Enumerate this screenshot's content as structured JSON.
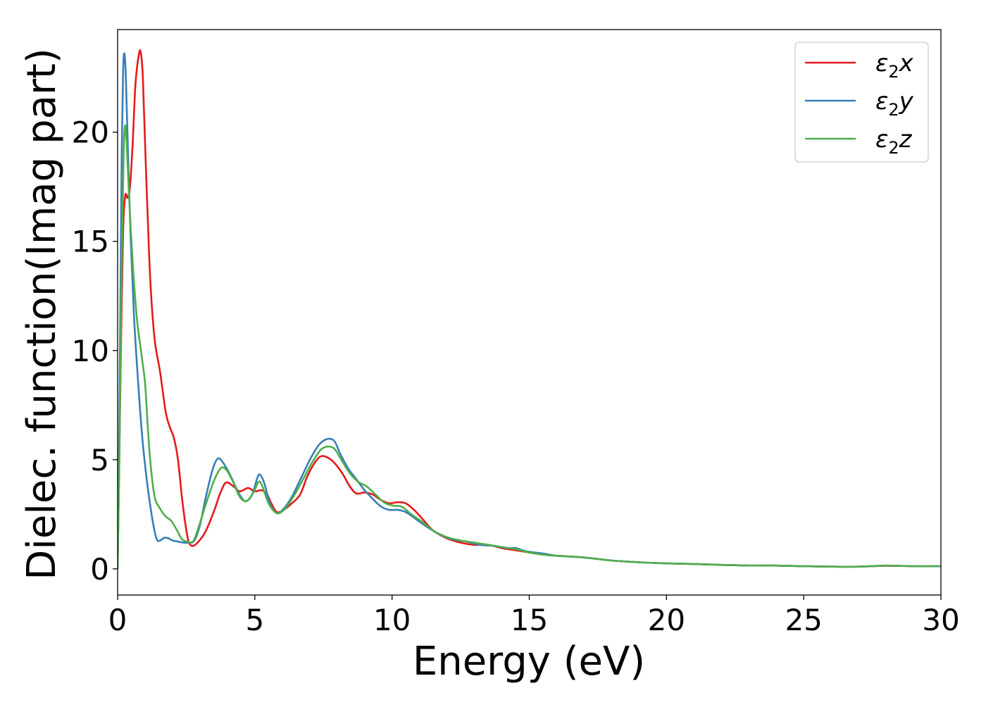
{
  "chart_data": {
    "type": "line",
    "title": "",
    "xlabel": "Energy (eV)",
    "ylabel": "Dielec. function(Imag part)",
    "xlim": [
      0,
      30
    ],
    "ylim": [
      -1.2,
      24.7
    ],
    "xticks": [
      0,
      5,
      10,
      15,
      20,
      25,
      30
    ],
    "xtick_labels": [
      "0",
      "5",
      "10",
      "15",
      "20",
      "25",
      "30"
    ],
    "yticks": [
      0,
      5,
      10,
      15,
      20
    ],
    "ytick_labels": [
      "0",
      "5",
      "10",
      "15",
      "20"
    ],
    "grid": false,
    "legend_position": "top-right",
    "series": [
      {
        "name": "ε2x",
        "legend": {
          "base": "ε",
          "sub": "2",
          "var": "x"
        },
        "color": "#e41a1c",
        "points": [
          [
            0,
            0
          ],
          [
            0.05,
            4
          ],
          [
            0.12,
            10
          ],
          [
            0.2,
            15.5
          ],
          [
            0.28,
            17.1
          ],
          [
            0.36,
            17.0
          ],
          [
            0.45,
            17.5
          ],
          [
            0.55,
            19.5
          ],
          [
            0.65,
            22.2
          ],
          [
            0.78,
            23.6
          ],
          [
            0.85,
            23.6
          ],
          [
            0.92,
            22.5
          ],
          [
            1.0,
            19.5
          ],
          [
            1.1,
            16.0
          ],
          [
            1.2,
            13.0
          ],
          [
            1.35,
            10.5
          ],
          [
            1.55,
            9.0
          ],
          [
            1.75,
            7.2
          ],
          [
            1.9,
            6.5
          ],
          [
            2.05,
            6.0
          ],
          [
            2.2,
            5.0
          ],
          [
            2.35,
            3.2
          ],
          [
            2.5,
            1.8
          ],
          [
            2.6,
            1.2
          ],
          [
            2.75,
            1.05
          ],
          [
            2.95,
            1.25
          ],
          [
            3.2,
            1.7
          ],
          [
            3.5,
            2.6
          ],
          [
            3.75,
            3.5
          ],
          [
            3.95,
            3.95
          ],
          [
            4.2,
            3.8
          ],
          [
            4.45,
            3.55
          ],
          [
            4.75,
            3.7
          ],
          [
            5.0,
            3.55
          ],
          [
            5.25,
            3.6
          ],
          [
            5.45,
            3.4
          ],
          [
            5.6,
            3.0
          ],
          [
            5.8,
            2.6
          ],
          [
            6.05,
            2.7
          ],
          [
            6.35,
            3.0
          ],
          [
            6.65,
            3.4
          ],
          [
            6.9,
            4.2
          ],
          [
            7.15,
            4.8
          ],
          [
            7.4,
            5.15
          ],
          [
            7.65,
            5.1
          ],
          [
            7.9,
            4.85
          ],
          [
            8.2,
            4.35
          ],
          [
            8.45,
            3.8
          ],
          [
            8.7,
            3.45
          ],
          [
            9.0,
            3.5
          ],
          [
            9.3,
            3.4
          ],
          [
            9.6,
            3.15
          ],
          [
            9.9,
            3.0
          ],
          [
            10.2,
            3.05
          ],
          [
            10.5,
            3.0
          ],
          [
            10.8,
            2.7
          ],
          [
            11.1,
            2.3
          ],
          [
            11.5,
            1.75
          ],
          [
            12.0,
            1.4
          ],
          [
            12.5,
            1.2
          ],
          [
            13.0,
            1.1
          ],
          [
            13.5,
            1.1
          ],
          [
            14.0,
            0.95
          ],
          [
            14.5,
            0.85
          ],
          [
            15.0,
            0.75
          ],
          [
            15.5,
            0.65
          ],
          [
            16.0,
            0.6
          ],
          [
            17.0,
            0.52
          ],
          [
            18.0,
            0.38
          ],
          [
            19.0,
            0.3
          ],
          [
            20.0,
            0.25
          ],
          [
            21.0,
            0.22
          ],
          [
            22.0,
            0.18
          ],
          [
            23.0,
            0.15
          ],
          [
            24.0,
            0.15
          ],
          [
            25.0,
            0.12
          ],
          [
            26.0,
            0.1
          ],
          [
            27.0,
            0.1
          ],
          [
            28.0,
            0.14
          ],
          [
            29.0,
            0.12
          ],
          [
            30.0,
            0.12
          ]
        ]
      },
      {
        "name": "ε2y",
        "legend": {
          "base": "ε",
          "sub": "2",
          "var": "y"
        },
        "color": "#377eb8",
        "points": [
          [
            0,
            0
          ],
          [
            0.05,
            5
          ],
          [
            0.1,
            12
          ],
          [
            0.15,
            19
          ],
          [
            0.2,
            22.8
          ],
          [
            0.25,
            23.6
          ],
          [
            0.3,
            22.5
          ],
          [
            0.38,
            19.0
          ],
          [
            0.48,
            15.0
          ],
          [
            0.6,
            11.5
          ],
          [
            0.75,
            8.5
          ],
          [
            0.9,
            6.0
          ],
          [
            1.05,
            4.2
          ],
          [
            1.2,
            2.8
          ],
          [
            1.35,
            1.7
          ],
          [
            1.45,
            1.3
          ],
          [
            1.55,
            1.3
          ],
          [
            1.7,
            1.42
          ],
          [
            1.85,
            1.4
          ],
          [
            2.0,
            1.3
          ],
          [
            2.2,
            1.25
          ],
          [
            2.4,
            1.2
          ],
          [
            2.6,
            1.2
          ],
          [
            2.8,
            1.3
          ],
          [
            3.0,
            2.0
          ],
          [
            3.2,
            3.2
          ],
          [
            3.45,
            4.5
          ],
          [
            3.65,
            5.05
          ],
          [
            3.85,
            4.85
          ],
          [
            4.1,
            4.3
          ],
          [
            4.4,
            3.5
          ],
          [
            4.65,
            3.1
          ],
          [
            4.9,
            3.4
          ],
          [
            5.1,
            4.2
          ],
          [
            5.2,
            4.3
          ],
          [
            5.35,
            3.9
          ],
          [
            5.55,
            3.0
          ],
          [
            5.8,
            2.55
          ],
          [
            6.05,
            2.75
          ],
          [
            6.35,
            3.3
          ],
          [
            6.7,
            4.2
          ],
          [
            7.05,
            5.1
          ],
          [
            7.35,
            5.7
          ],
          [
            7.65,
            5.95
          ],
          [
            7.9,
            5.85
          ],
          [
            8.1,
            5.3
          ],
          [
            8.4,
            4.6
          ],
          [
            8.7,
            4.1
          ],
          [
            9.0,
            3.6
          ],
          [
            9.3,
            3.2
          ],
          [
            9.6,
            2.85
          ],
          [
            9.9,
            2.7
          ],
          [
            10.2,
            2.7
          ],
          [
            10.5,
            2.6
          ],
          [
            10.9,
            2.25
          ],
          [
            11.3,
            1.9
          ],
          [
            11.7,
            1.6
          ],
          [
            12.2,
            1.35
          ],
          [
            12.7,
            1.25
          ],
          [
            13.2,
            1.1
          ],
          [
            13.7,
            1.05
          ],
          [
            14.2,
            0.95
          ],
          [
            14.5,
            0.95
          ],
          [
            14.9,
            0.8
          ],
          [
            15.5,
            0.7
          ],
          [
            16.0,
            0.6
          ],
          [
            17.0,
            0.52
          ],
          [
            18.0,
            0.38
          ],
          [
            19.0,
            0.3
          ],
          [
            20.0,
            0.25
          ],
          [
            21.0,
            0.22
          ],
          [
            22.0,
            0.18
          ],
          [
            23.0,
            0.15
          ],
          [
            24.0,
            0.15
          ],
          [
            25.0,
            0.12
          ],
          [
            26.0,
            0.1
          ],
          [
            27.0,
            0.1
          ],
          [
            28.0,
            0.15
          ],
          [
            29.0,
            0.12
          ],
          [
            30.0,
            0.12
          ]
        ]
      },
      {
        "name": "ε2z",
        "legend": {
          "base": "ε",
          "sub": "2",
          "var": "z"
        },
        "color": "#4daf4a",
        "points": [
          [
            0,
            0
          ],
          [
            0.05,
            4
          ],
          [
            0.1,
            9
          ],
          [
            0.15,
            14
          ],
          [
            0.22,
            19.0
          ],
          [
            0.27,
            20.3
          ],
          [
            0.33,
            19.5
          ],
          [
            0.42,
            17.0
          ],
          [
            0.55,
            14.0
          ],
          [
            0.7,
            11.5
          ],
          [
            0.85,
            10.0
          ],
          [
            1.0,
            8.5
          ],
          [
            1.1,
            6.5
          ],
          [
            1.2,
            4.8
          ],
          [
            1.35,
            3.3
          ],
          [
            1.55,
            2.75
          ],
          [
            1.75,
            2.4
          ],
          [
            1.95,
            2.2
          ],
          [
            2.15,
            1.8
          ],
          [
            2.35,
            1.35
          ],
          [
            2.55,
            1.25
          ],
          [
            2.75,
            1.25
          ],
          [
            2.95,
            1.9
          ],
          [
            3.2,
            2.9
          ],
          [
            3.5,
            4.0
          ],
          [
            3.75,
            4.6
          ],
          [
            3.95,
            4.55
          ],
          [
            4.2,
            4.0
          ],
          [
            4.45,
            3.3
          ],
          [
            4.7,
            3.1
          ],
          [
            4.95,
            3.5
          ],
          [
            5.15,
            4.0
          ],
          [
            5.3,
            3.7
          ],
          [
            5.5,
            3.0
          ],
          [
            5.8,
            2.55
          ],
          [
            6.1,
            2.75
          ],
          [
            6.45,
            3.4
          ],
          [
            6.8,
            4.2
          ],
          [
            7.1,
            4.9
          ],
          [
            7.4,
            5.45
          ],
          [
            7.65,
            5.6
          ],
          [
            7.9,
            5.5
          ],
          [
            8.15,
            5.0
          ],
          [
            8.45,
            4.4
          ],
          [
            8.75,
            4.0
          ],
          [
            9.1,
            3.75
          ],
          [
            9.4,
            3.4
          ],
          [
            9.7,
            3.05
          ],
          [
            10.0,
            2.9
          ],
          [
            10.35,
            2.85
          ],
          [
            10.7,
            2.5
          ],
          [
            11.1,
            2.15
          ],
          [
            11.5,
            1.75
          ],
          [
            12.0,
            1.45
          ],
          [
            12.5,
            1.3
          ],
          [
            13.0,
            1.2
          ],
          [
            13.5,
            1.1
          ],
          [
            14.0,
            1.0
          ],
          [
            14.5,
            0.9
          ],
          [
            15.0,
            0.75
          ],
          [
            15.5,
            0.65
          ],
          [
            16.0,
            0.6
          ],
          [
            17.0,
            0.52
          ],
          [
            18.0,
            0.38
          ],
          [
            19.0,
            0.3
          ],
          [
            20.0,
            0.25
          ],
          [
            21.0,
            0.22
          ],
          [
            22.0,
            0.18
          ],
          [
            23.0,
            0.15
          ],
          [
            24.0,
            0.15
          ],
          [
            25.0,
            0.12
          ],
          [
            26.0,
            0.1
          ],
          [
            27.0,
            0.1
          ],
          [
            28.0,
            0.15
          ],
          [
            29.0,
            0.12
          ],
          [
            30.0,
            0.12
          ]
        ]
      }
    ]
  }
}
